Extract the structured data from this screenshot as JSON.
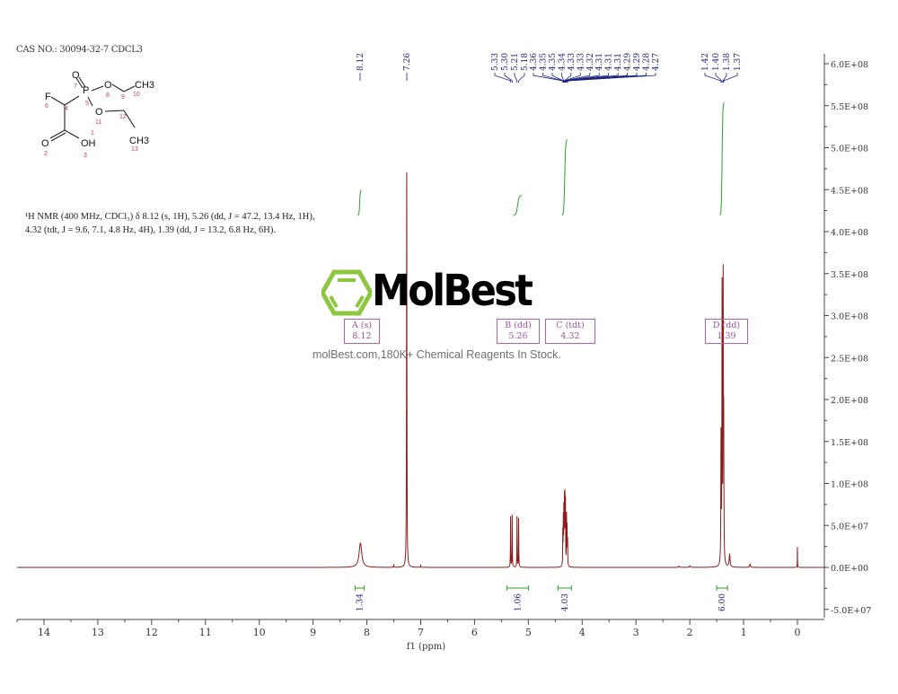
{
  "header": {
    "cas_line": "CAS NO.: 30094-32-7 CDCL3"
  },
  "structure": {
    "atoms": [
      "O",
      "P",
      "O",
      "CH3",
      "F",
      "O",
      "O",
      "OH",
      "CH3"
    ],
    "atom_numbers": [
      "1",
      "2",
      "3",
      "4",
      "5",
      "6",
      "7",
      "8",
      "9",
      "10",
      "11",
      "12",
      "13"
    ]
  },
  "nmr_description": {
    "line1": "¹H NMR (400 MHz, CDCl₃) δ 8.12 (s, 1H), 5.26 (dd, J = 47.2, 13.4 Hz, 1H),",
    "line2": "4.32 (tdt, J = 9.6, 7.1, 4.8 Hz, 4H), 1.39 (dd, J = 13.2, 6.8 Hz, 6H)."
  },
  "watermark": {
    "brand": "MolBest",
    "tagline": "molBest.com,180K+ Chemical Reagents In Stock.",
    "logo_color": "#8dc63f"
  },
  "colors": {
    "spectrum": "#8b1c1c",
    "peak_labels": "#1a237e",
    "integrals": "#2e9e2e",
    "multiplet_boxes": "#a050a0",
    "axis": "#444444"
  },
  "chart_data": {
    "type": "line",
    "title": "",
    "xlabel": "f1 (ppm)",
    "ylabel": "",
    "xlim": [
      14.5,
      -0.5
    ],
    "ylim": [
      -50000000,
      600000000
    ],
    "x_ticks": [
      "14",
      "13",
      "12",
      "11",
      "10",
      "9",
      "8",
      "7",
      "6",
      "5",
      "4",
      "3",
      "2",
      "1",
      "0"
    ],
    "y_ticks": [
      "6.0E+08",
      "5.5E+08",
      "5.0E+08",
      "4.5E+08",
      "4.0E+08",
      "3.5E+08",
      "3.0E+08",
      "2.5E+08",
      "2.0E+08",
      "1.5E+08",
      "1.0E+08",
      "5.0E+07",
      "0.0E+00",
      "-5.0E+07"
    ],
    "y_tick_values": [
      600000000,
      550000000,
      500000000,
      450000000,
      400000000,
      350000000,
      300000000,
      250000000,
      200000000,
      150000000,
      100000000,
      50000000,
      0,
      -50000000
    ],
    "grid": false,
    "peaks": [
      {
        "ppm": 8.12,
        "height": 29000000,
        "width": 0.03
      },
      {
        "ppm": 7.5,
        "height": 3000000,
        "width": 0.004
      },
      {
        "ppm": 7.26,
        "height": 478000000,
        "width": 0.004
      },
      {
        "ppm": 7.0,
        "height": 2500000,
        "width": 0.004
      },
      {
        "ppm": 5.33,
        "height": 62000000,
        "width": 0.003
      },
      {
        "ppm": 5.3,
        "height": 64000000,
        "width": 0.003
      },
      {
        "ppm": 5.21,
        "height": 62000000,
        "width": 0.003
      },
      {
        "ppm": 5.18,
        "height": 60000000,
        "width": 0.003
      },
      {
        "ppm": 4.36,
        "height": 40000000,
        "width": 0.003
      },
      {
        "ppm": 4.35,
        "height": 55000000,
        "width": 0.003
      },
      {
        "ppm": 4.34,
        "height": 65000000,
        "width": 0.003
      },
      {
        "ppm": 4.33,
        "height": 75000000,
        "width": 0.003
      },
      {
        "ppm": 4.32,
        "height": 80000000,
        "width": 0.003
      },
      {
        "ppm": 4.31,
        "height": 75000000,
        "width": 0.003
      },
      {
        "ppm": 4.29,
        "height": 60000000,
        "width": 0.003
      },
      {
        "ppm": 4.28,
        "height": 45000000,
        "width": 0.003
      },
      {
        "ppm": 4.27,
        "height": 30000000,
        "width": 0.003
      },
      {
        "ppm": 2.2,
        "height": 1500000,
        "width": 0.01
      },
      {
        "ppm": 2.0,
        "height": 2000000,
        "width": 0.01
      },
      {
        "ppm": 1.42,
        "height": 150000000,
        "width": 0.004
      },
      {
        "ppm": 1.4,
        "height": 330000000,
        "width": 0.004
      },
      {
        "ppm": 1.38,
        "height": 330000000,
        "width": 0.004
      },
      {
        "ppm": 1.37,
        "height": 150000000,
        "width": 0.004
      },
      {
        "ppm": 1.26,
        "height": 15000000,
        "width": 0.01
      },
      {
        "ppm": 0.88,
        "height": 4000000,
        "width": 0.008
      },
      {
        "ppm": 0.0,
        "height": 26000000,
        "width": 0.002
      }
    ],
    "peak_label_groups": [
      {
        "labels": [
          "8.12"
        ],
        "ppm": [
          8.12
        ]
      },
      {
        "labels": [
          "7.26"
        ],
        "ppm": [
          7.26
        ]
      },
      {
        "labels": [
          "5.33",
          "5.30",
          "5.21",
          "5.18"
        ],
        "ppm": [
          5.33,
          5.3,
          5.21,
          5.18
        ]
      },
      {
        "labels": [
          "4.36",
          "4.35",
          "4.35",
          "4.34",
          "4.33",
          "4.33",
          "4.32",
          "4.31",
          "4.31",
          "4.31",
          "4.29",
          "4.29",
          "4.28",
          "4.27"
        ],
        "ppm": [
          4.36,
          4.35,
          4.35,
          4.34,
          4.33,
          4.33,
          4.32,
          4.31,
          4.31,
          4.31,
          4.29,
          4.29,
          4.28,
          4.27
        ]
      },
      {
        "labels": [
          "1.42",
          "1.40",
          "1.38",
          "1.37"
        ],
        "ppm": [
          1.42,
          1.4,
          1.38,
          1.37
        ]
      }
    ],
    "multiplets": [
      {
        "id": "A",
        "type": "(s)",
        "shift": "8.12"
      },
      {
        "id": "B",
        "type": "(dd)",
        "shift": "5.26"
      },
      {
        "id": "C",
        "type": "(tdt)",
        "shift": "4.32"
      },
      {
        "id": "D",
        "type": "(dd)",
        "shift": "1.39"
      }
    ],
    "integrals": [
      {
        "from": 8.22,
        "to": 8.05,
        "value": "1.34"
      },
      {
        "from": 5.4,
        "to": 5.0,
        "value": "1.06"
      },
      {
        "from": 4.45,
        "to": 4.2,
        "value": "4.03"
      },
      {
        "from": 1.5,
        "to": 1.3,
        "value": "6.00"
      }
    ]
  }
}
